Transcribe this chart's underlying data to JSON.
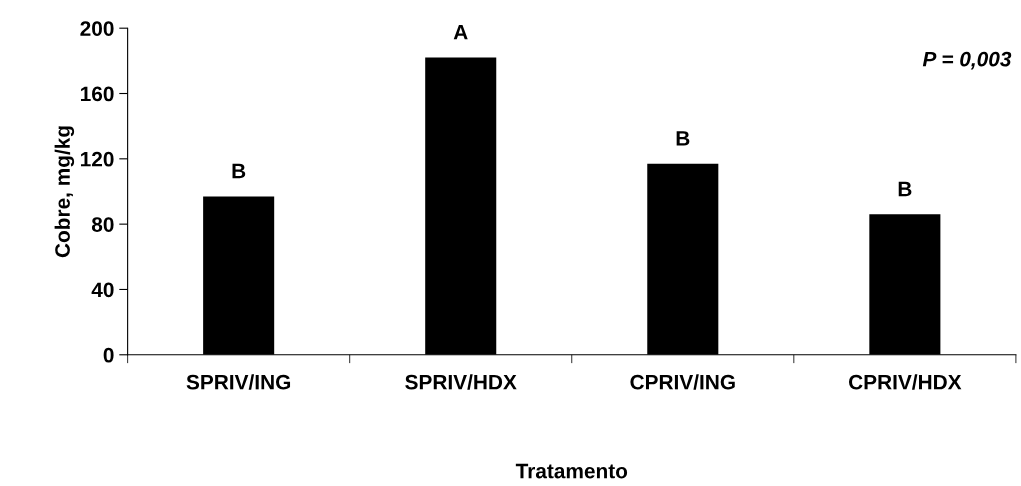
{
  "chart_data": {
    "type": "bar",
    "xlabel": "Tratamento",
    "ylabel": "Cobre, mg/kg",
    "categories": [
      "SPRIV/ING",
      "SPRIV/HDX",
      "CPRIV/ING",
      "CPRIV/HDX"
    ],
    "values": [
      97,
      182,
      117,
      86
    ],
    "color": "#000000",
    "ylim": [
      0,
      200
    ],
    "yticks": [
      0,
      40,
      80,
      120,
      160,
      200
    ],
    "grid": false,
    "legend": false,
    "annotations": [
      {
        "text": "B",
        "x": "SPRIV/ING",
        "y": 97
      },
      {
        "text": "A",
        "x": "SPRIV/HDX",
        "y": 182
      },
      {
        "text": "B",
        "x": "CPRIV/ING",
        "y": 117
      },
      {
        "text": "B",
        "x": "CPRIV/HDX",
        "y": 86
      },
      "P = 0,003"
    ]
  }
}
